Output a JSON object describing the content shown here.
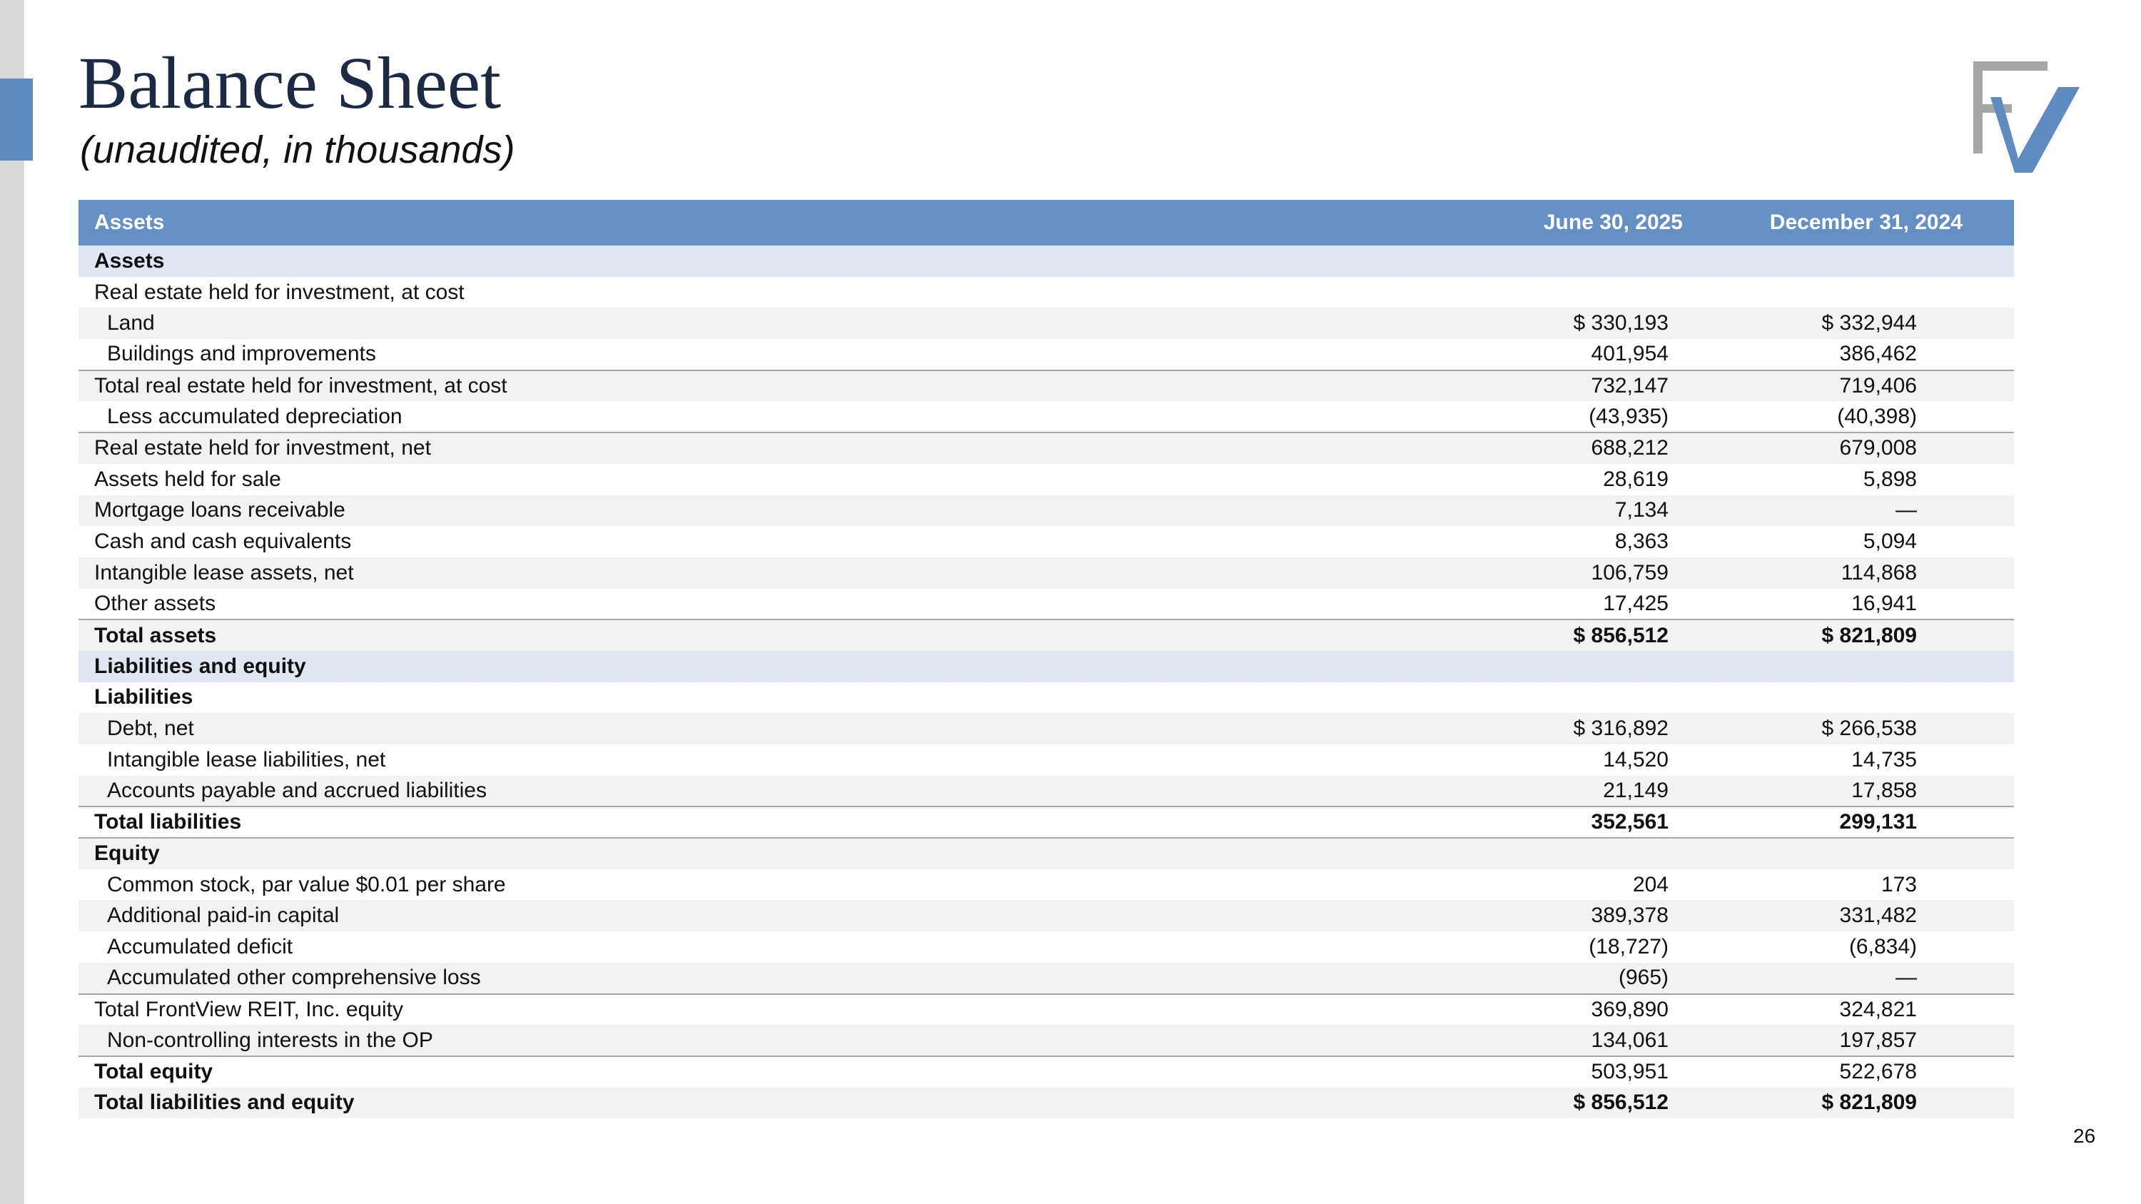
{
  "slide": {
    "title": "Balance Sheet",
    "subtitle": "(unaudited, in thousands)",
    "page_number": "26",
    "logo_icon": "frontview-fv-logo-icon",
    "colors": {
      "header": "#6590c4",
      "section": "#dfe7f2",
      "shade": "#f2f2f2",
      "accent": "#5f8cc0",
      "logo_gray": "#a6a6a6",
      "logo_blue": "#5f8cc0"
    }
  },
  "table": {
    "header": {
      "label": "Assets",
      "col1": "June 30, 2025",
      "col2": "December 31, 2024"
    },
    "rows": [
      {
        "label": "Assets",
        "v1": "",
        "v2": ""
      },
      {
        "label": "Real estate held for investment, at cost",
        "v1": "",
        "v2": ""
      },
      {
        "label": "Land",
        "v1": "$ 330,193",
        "v2": "$ 332,944"
      },
      {
        "label": "Buildings and improvements",
        "v1": "401,954",
        "v2": "386,462"
      },
      {
        "label": "Total real estate held for investment, at cost",
        "v1": "732,147",
        "v2": "719,406"
      },
      {
        "label": "Less accumulated depreciation",
        "v1": "(43,935)",
        "v2": "(40,398)"
      },
      {
        "label": "Real estate held for investment, net",
        "v1": "688,212",
        "v2": "679,008"
      },
      {
        "label": "Assets held for sale",
        "v1": "28,619",
        "v2": "5,898"
      },
      {
        "label": "Mortgage loans receivable",
        "v1": "7,134",
        "v2": "—"
      },
      {
        "label": "Cash and cash equivalents",
        "v1": "8,363",
        "v2": "5,094"
      },
      {
        "label": "Intangible lease assets, net",
        "v1": "106,759",
        "v2": "114,868"
      },
      {
        "label": "Other assets",
        "v1": "17,425",
        "v2": "16,941"
      },
      {
        "label": "Total assets",
        "v1": "$ 856,512",
        "v2": "$ 821,809"
      },
      {
        "label": "Liabilities and equity",
        "v1": "",
        "v2": ""
      },
      {
        "label": "Liabilities",
        "v1": "",
        "v2": ""
      },
      {
        "label": "Debt, net",
        "v1": "$ 316,892",
        "v2": "$ 266,538"
      },
      {
        "label": "Intangible lease liabilities, net",
        "v1": "14,520",
        "v2": "14,735"
      },
      {
        "label": "Accounts payable and accrued liabilities",
        "v1": "21,149",
        "v2": "17,858"
      },
      {
        "label": "Total liabilities",
        "v1": "352,561",
        "v2": "299,131"
      },
      {
        "label": "Equity",
        "v1": "",
        "v2": ""
      },
      {
        "label": "Common stock, par value $0.01 per share",
        "v1": "204",
        "v2": "173"
      },
      {
        "label": "Additional paid-in capital",
        "v1": "389,378",
        "v2": "331,482"
      },
      {
        "label": "Accumulated deficit",
        "v1": "(18,727)",
        "v2": "(6,834)"
      },
      {
        "label": "Accumulated other comprehensive loss",
        "v1": "(965)",
        "v2": "—"
      },
      {
        "label": "Total FrontView REIT, Inc. equity",
        "v1": "369,890",
        "v2": "324,821"
      },
      {
        "label": "Non-controlling interests in the OP",
        "v1": "134,061",
        "v2": "197,857"
      },
      {
        "label": "Total equity",
        "v1": "503,951",
        "v2": "522,678"
      },
      {
        "label": "Total liabilities and equity",
        "v1": "$ 856,512",
        "v2": "$ 821,809"
      }
    ]
  }
}
